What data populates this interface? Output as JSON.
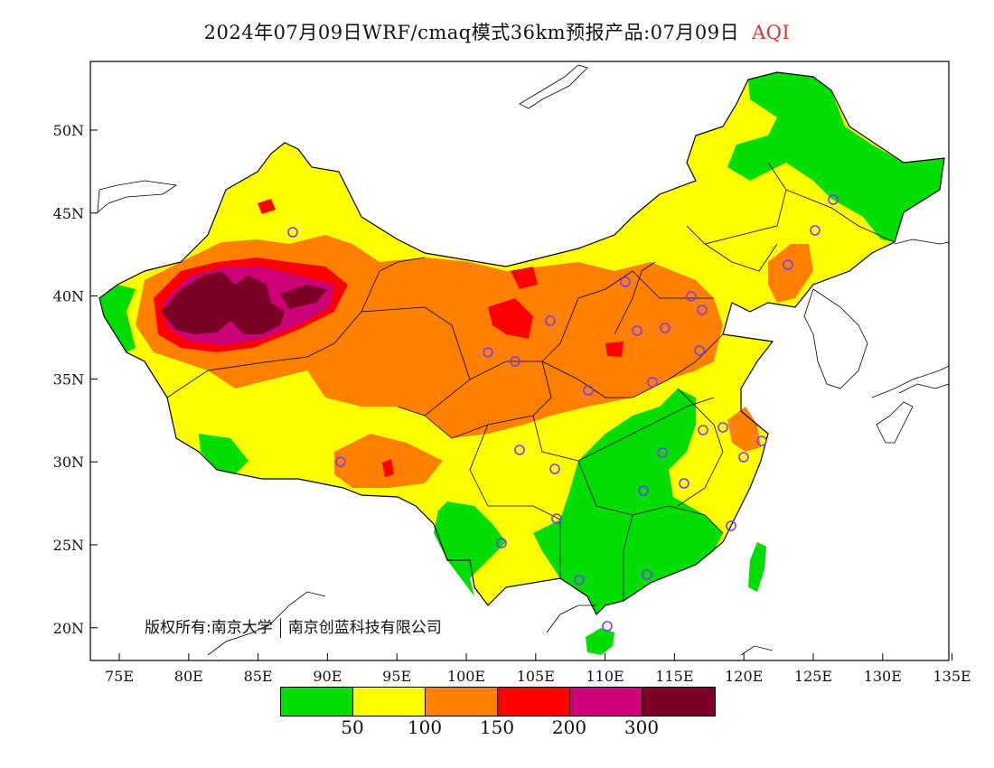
{
  "title": {
    "main": "2024年07月09日WRF/cmaq模式36km预报产品:07月09日",
    "variable": "AQI",
    "variable_color": "#e03030"
  },
  "axes": {
    "x_ticks": [
      "75E",
      "80E",
      "85E",
      "90E",
      "95E",
      "100E",
      "105E",
      "110E",
      "115E",
      "120E",
      "125E",
      "130E",
      "135E"
    ],
    "y_ticks": [
      "50N",
      "45N",
      "40N",
      "35N",
      "30N",
      "25N",
      "20N"
    ]
  },
  "copyright": {
    "left": "版权所有:南京大学",
    "right": "南京创蓝科技有限公司"
  },
  "legend": {
    "colors": [
      "#00dd00",
      "#ffff00",
      "#ff8000",
      "#ff0000",
      "#cc0077",
      "#7a0026"
    ],
    "labels": [
      "50",
      "100",
      "150",
      "200",
      "300"
    ]
  },
  "cities_marker_icon": "circle-marker-icon"
}
